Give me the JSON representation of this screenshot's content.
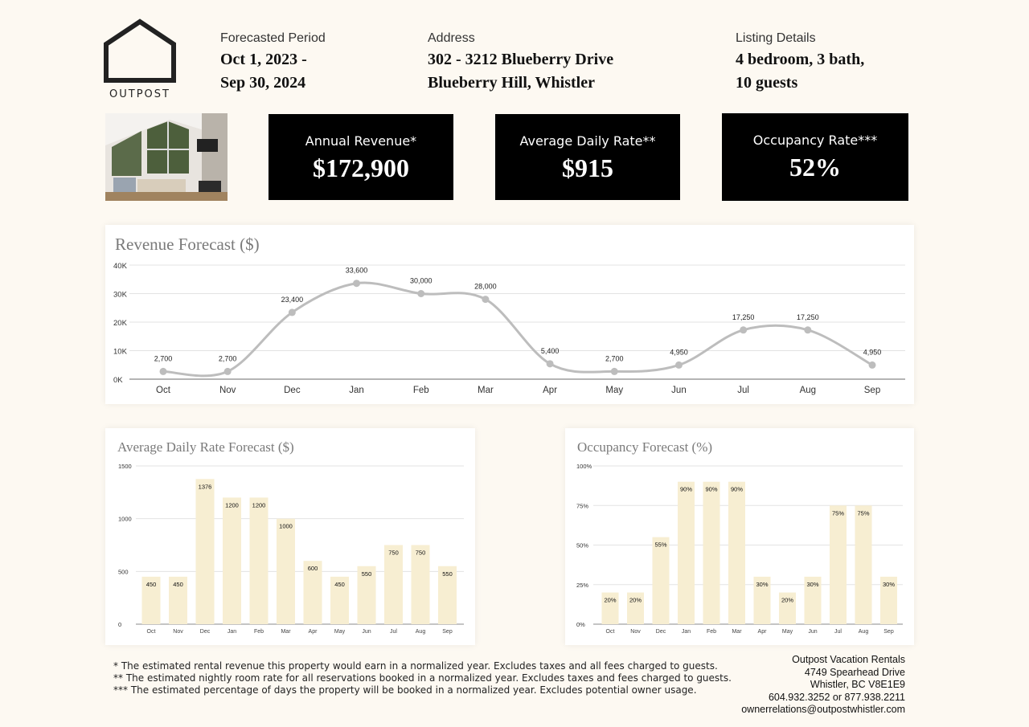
{
  "brand": {
    "name": "OUTPOST"
  },
  "header": {
    "period": {
      "label": "Forecasted Period",
      "line1": "Oct 1, 2023 -",
      "line2": "Sep 30, 2024"
    },
    "address": {
      "label": "Address",
      "line1": "302 - 3212 Blueberry Drive",
      "line2": "Blueberry Hill, Whistler"
    },
    "listing": {
      "label": "Listing Details",
      "line1": "4 bedroom, 3 bath,",
      "line2": "10 guests"
    }
  },
  "kpis": [
    {
      "label": "Annual Revenue*",
      "value": "$172,900"
    },
    {
      "label": "Average Daily Rate**",
      "value": "$915"
    },
    {
      "label": "Occupancy Rate***",
      "value": "52%"
    }
  ],
  "chart_data": [
    {
      "type": "line",
      "title": "Revenue Forecast ($)",
      "categories": [
        "Oct",
        "Nov",
        "Dec",
        "Jan",
        "Feb",
        "Mar",
        "Apr",
        "May",
        "Jun",
        "Jul",
        "Aug",
        "Sep"
      ],
      "values": [
        2700,
        2700,
        23400,
        33600,
        30000,
        28000,
        5400,
        2700,
        4950,
        17250,
        17250,
        4950
      ],
      "data_labels": [
        "2,700",
        "2,700",
        "23,400",
        "33,600",
        "30,000",
        "28,000",
        "5,400",
        "2,700",
        "4,950",
        "17,250",
        "17,250",
        "4,950"
      ],
      "yticks": [
        "0K",
        "10K",
        "20K",
        "30K",
        "40K"
      ],
      "ylim": [
        0,
        40000
      ],
      "grid": true,
      "color": "#bdbdbd"
    },
    {
      "type": "bar",
      "title": "Average Daily Rate Forecast ($)",
      "categories": [
        "Oct",
        "Nov",
        "Dec",
        "Jan",
        "Feb",
        "Mar",
        "Apr",
        "May",
        "Jun",
        "Jul",
        "Aug",
        "Sep"
      ],
      "values": [
        450,
        450,
        1376,
        1200,
        1200,
        1000,
        600,
        450,
        550,
        750,
        750,
        550
      ],
      "data_labels": [
        "450",
        "450",
        "1376",
        "1200",
        "1200",
        "1000",
        "600",
        "450",
        "550",
        "750",
        "750",
        "550"
      ],
      "yticks": [
        "0",
        "500",
        "1000",
        "1500"
      ],
      "ylim": [
        0,
        1500
      ],
      "grid": true,
      "color": "#f7eed2"
    },
    {
      "type": "bar",
      "title": "Occupancy Forecast (%)",
      "categories": [
        "Oct",
        "Nov",
        "Dec",
        "Jan",
        "Feb",
        "Mar",
        "Apr",
        "May",
        "Jun",
        "Jul",
        "Aug",
        "Sep"
      ],
      "values": [
        20,
        20,
        55,
        90,
        90,
        90,
        30,
        20,
        30,
        75,
        75,
        30
      ],
      "data_labels": [
        "20%",
        "20%",
        "55%",
        "90%",
        "90%",
        "90%",
        "30%",
        "20%",
        "30%",
        "75%",
        "75%",
        "30%"
      ],
      "yticks": [
        "0%",
        "25%",
        "50%",
        "75%",
        "100%"
      ],
      "ylim": [
        0,
        100
      ],
      "grid": true,
      "color": "#f7eed2"
    }
  ],
  "footnotes": [
    "* The estimated rental revenue this property would earn in a normalized year. Excludes taxes and all fees charged to guests.",
    "** The estimated nightly room rate for all reservations booked in a normalized year. Excludes taxes and fees charged to guests.",
    "*** The estimated percentage of days the property will be booked in a normalized year. Excludes potential owner usage."
  ],
  "contact": [
    "Outpost Vacation Rentals",
    "4749 Spearhead Drive",
    "Whistler, BC V8E1E9",
    "604.932.3252 or 877.938.2211",
    "ownerrelations@outpostwhistler.com"
  ]
}
